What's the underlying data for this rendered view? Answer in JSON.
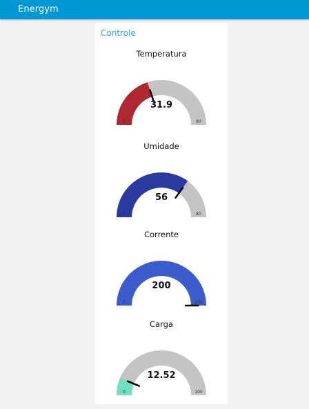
{
  "app": {
    "title": "Energym"
  },
  "group": {
    "title": "Controle"
  },
  "gauges": [
    {
      "title": "Temperatura",
      "value": 31.9,
      "display": "31.9",
      "min": "0",
      "max": "80",
      "min_value": 0,
      "max_value": 80,
      "fill_color": "#b0282f",
      "track_color": "#c4c4c4"
    },
    {
      "title": "Umidade",
      "value": 56,
      "display": "56",
      "min": "0",
      "max": "80",
      "min_value": 0,
      "max_value": 80,
      "fill_color": "#2a3aa0",
      "track_color": "#c4c4c4"
    },
    {
      "title": "Corrente",
      "value": 200,
      "display": "200",
      "min": "0",
      "max": "200",
      "min_value": 0,
      "max_value": 200,
      "fill_color": "#3a5ccc",
      "track_color": "#c4c4c4"
    },
    {
      "title": "Carga",
      "value": 12.52,
      "display": "12.52",
      "min": "0",
      "max": "100",
      "min_value": 0,
      "max_value": 100,
      "fill_color": "#6fe0c0",
      "track_color": "#c4c4c4"
    }
  ]
}
